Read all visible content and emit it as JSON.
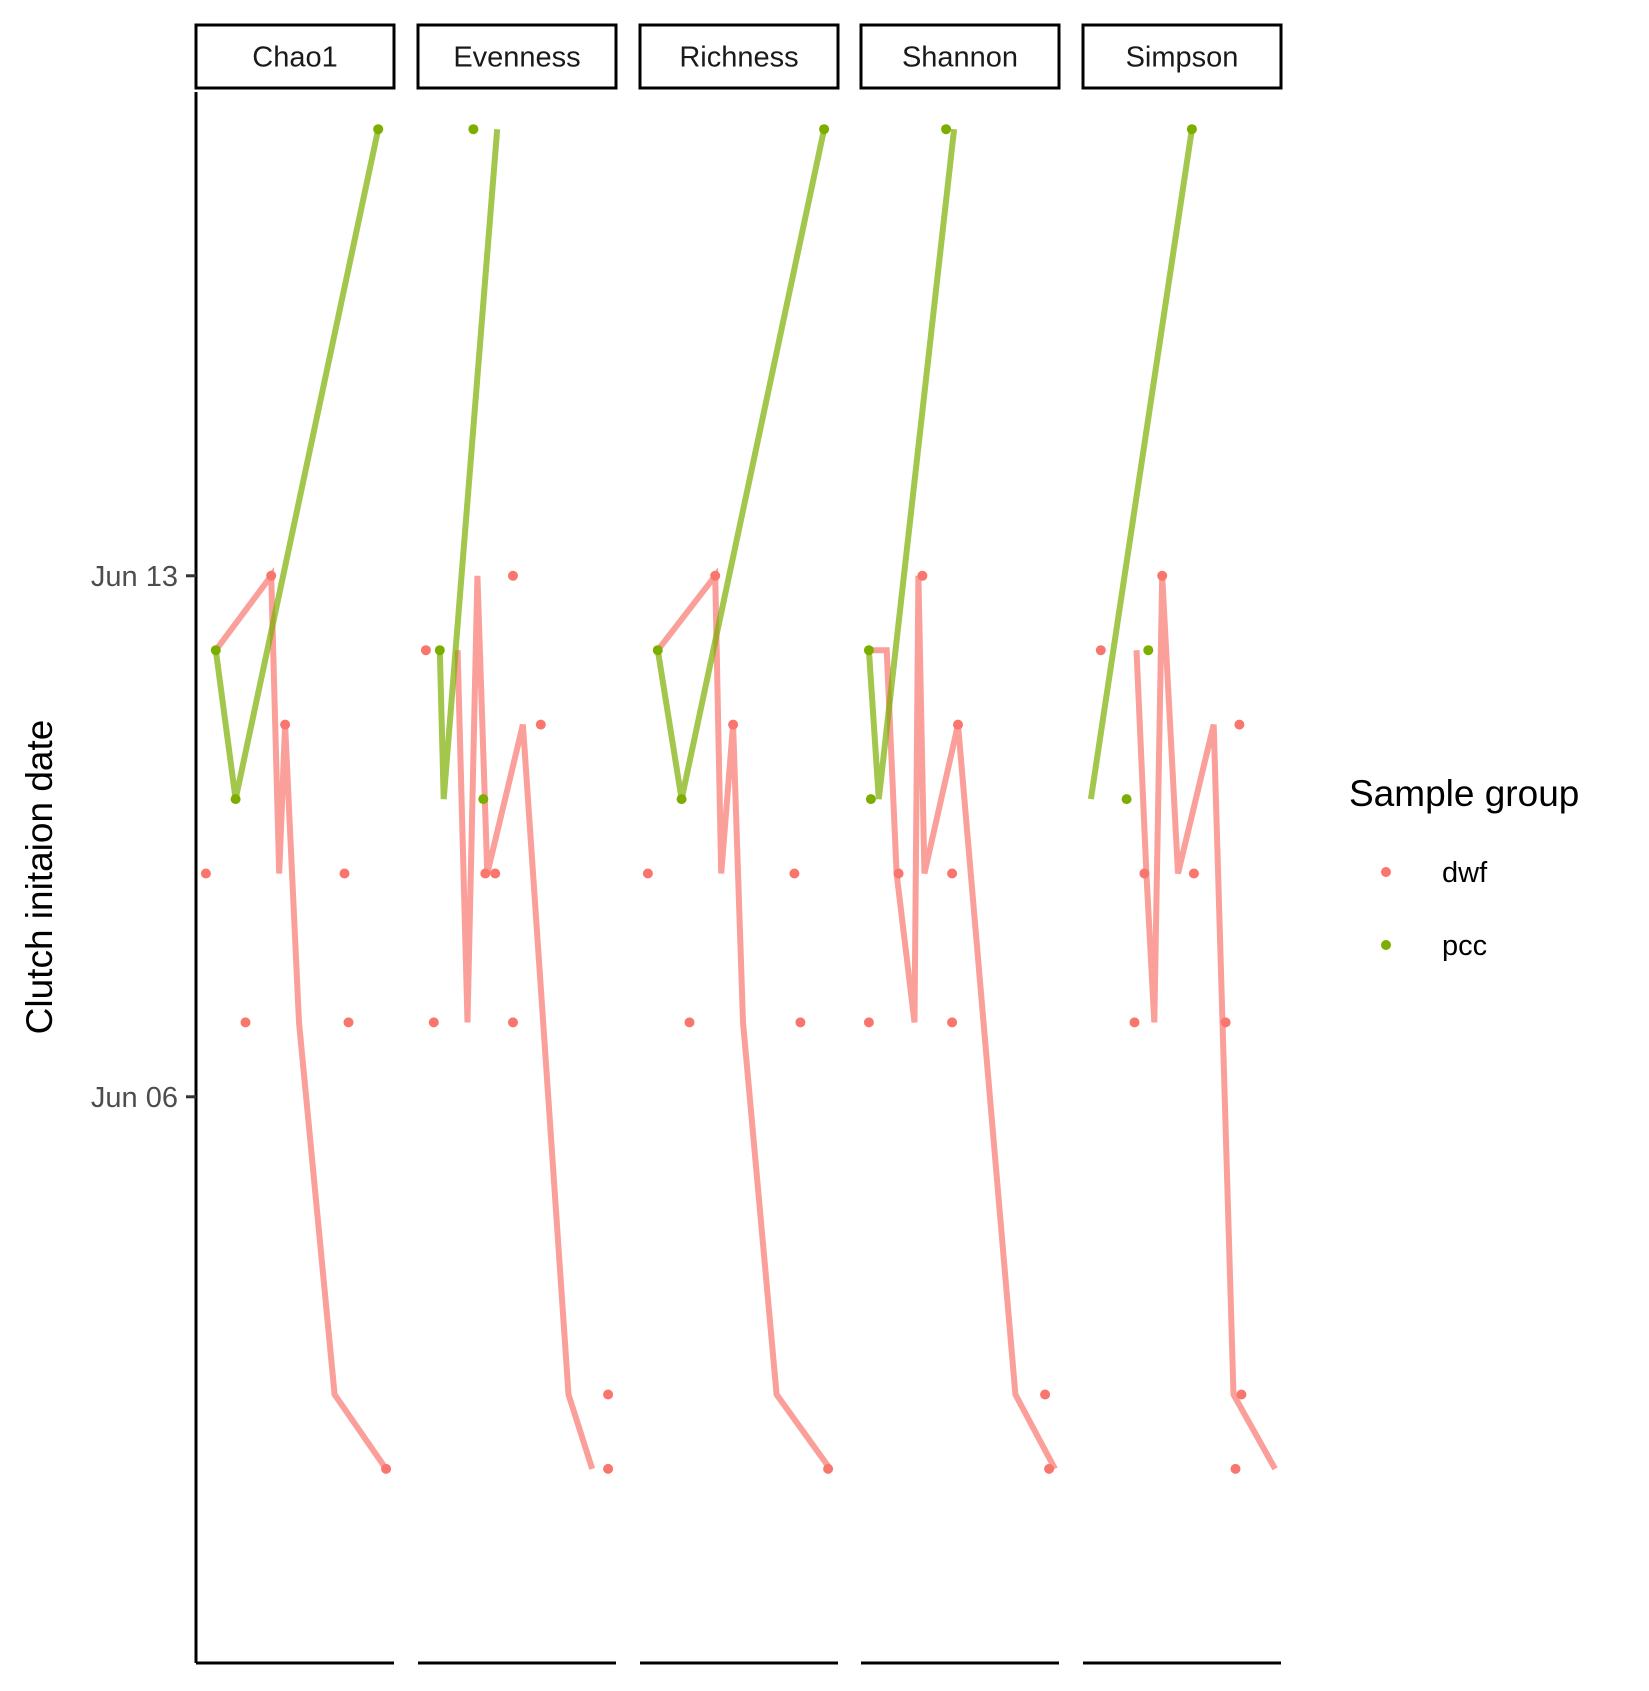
{
  "chart_data": {
    "type": "line",
    "ylabel": "Clutch initaion date",
    "xlabel": "",
    "title": "",
    "y_ticks": [
      {
        "value": "2019-06-06",
        "label": "Jun 06"
      },
      {
        "value": "2019-06-13",
        "label": "Jun 13"
      }
    ],
    "ylim": [
      "2019-05-29 12:00",
      "2019-06-19 12:00"
    ],
    "grid": false,
    "x_axis_labels": false,
    "legend": {
      "title": "Sample group",
      "position": "right",
      "entries": [
        {
          "key": "dwf",
          "label": "dwf",
          "color": "#F8766D"
        },
        {
          "key": "pcc",
          "label": "pcc",
          "color": "#7CAE00"
        }
      ]
    },
    "panels": [
      {
        "facet": "Chao1",
        "points": {
          "dwf": [
            [
              0.05,
              "2019-06-09"
            ],
            [
              0.25,
              "2019-06-07"
            ],
            [
              0.38,
              "2019-06-13"
            ],
            [
              0.45,
              "2019-06-11"
            ],
            [
              0.75,
              "2019-06-09"
            ],
            [
              0.77,
              "2019-06-07"
            ],
            [
              0.96,
              "2019-06-01"
            ]
          ],
          "pcc": [
            [
              0.1,
              "2019-06-12"
            ],
            [
              0.2,
              "2019-06-10"
            ],
            [
              0.92,
              "2019-06-19"
            ]
          ]
        },
        "lines": {
          "dwf": [
            [
              0.1,
              "2019-06-12"
            ],
            [
              0.38,
              "2019-06-13"
            ],
            [
              0.42,
              "2019-06-09"
            ],
            [
              0.45,
              "2019-06-11"
            ],
            [
              0.52,
              "2019-06-07"
            ],
            [
              0.7,
              "2019-06-02"
            ],
            [
              0.96,
              "2019-06-01"
            ]
          ],
          "pcc": [
            [
              0.1,
              "2019-06-12"
            ],
            [
              0.2,
              "2019-06-10"
            ],
            [
              0.92,
              "2019-06-19"
            ]
          ]
        }
      },
      {
        "facet": "Evenness",
        "points": {
          "dwf": [
            [
              0.04,
              "2019-06-12"
            ],
            [
              0.08,
              "2019-06-07"
            ],
            [
              0.34,
              "2019-06-09"
            ],
            [
              0.39,
              "2019-06-09"
            ],
            [
              0.48,
              "2019-06-07"
            ],
            [
              0.48,
              "2019-06-13"
            ],
            [
              0.62,
              "2019-06-11"
            ],
            [
              0.96,
              "2019-06-02"
            ],
            [
              0.96,
              "2019-06-01"
            ]
          ],
          "pcc": [
            [
              0.11,
              "2019-06-12"
            ],
            [
              0.28,
              "2019-06-19"
            ],
            [
              0.33,
              "2019-06-10"
            ]
          ]
        },
        "lines": {
          "dwf": [
            [
              0.2,
              "2019-06-12"
            ],
            [
              0.25,
              "2019-06-07"
            ],
            [
              0.3,
              "2019-06-13"
            ],
            [
              0.35,
              "2019-06-09"
            ],
            [
              0.53,
              "2019-06-11"
            ],
            [
              0.76,
              "2019-06-02"
            ],
            [
              0.88,
              "2019-06-01"
            ]
          ],
          "pcc": [
            [
              0.11,
              "2019-06-12"
            ],
            [
              0.13,
              "2019-06-10"
            ],
            [
              0.4,
              "2019-06-19"
            ]
          ]
        }
      },
      {
        "facet": "Richness",
        "points": {
          "dwf": [
            [
              0.04,
              "2019-06-09"
            ],
            [
              0.25,
              "2019-06-07"
            ],
            [
              0.38,
              "2019-06-13"
            ],
            [
              0.47,
              "2019-06-11"
            ],
            [
              0.78,
              "2019-06-09"
            ],
            [
              0.81,
              "2019-06-07"
            ],
            [
              0.95,
              "2019-06-01"
            ]
          ],
          "pcc": [
            [
              0.09,
              "2019-06-12"
            ],
            [
              0.21,
              "2019-06-10"
            ],
            [
              0.93,
              "2019-06-19"
            ]
          ]
        },
        "lines": {
          "dwf": [
            [
              0.09,
              "2019-06-12"
            ],
            [
              0.38,
              "2019-06-13"
            ],
            [
              0.41,
              "2019-06-09"
            ],
            [
              0.47,
              "2019-06-11"
            ],
            [
              0.52,
              "2019-06-07"
            ],
            [
              0.69,
              "2019-06-02"
            ],
            [
              0.96,
              "2019-06-01"
            ]
          ],
          "pcc": [
            [
              0.09,
              "2019-06-12"
            ],
            [
              0.21,
              "2019-06-10"
            ],
            [
              0.93,
              "2019-06-19"
            ]
          ]
        }
      },
      {
        "facet": "Shannon",
        "points": {
          "dwf": [
            [
              0.04,
              "2019-06-07"
            ],
            [
              0.19,
              "2019-06-09"
            ],
            [
              0.31,
              "2019-06-13"
            ],
            [
              0.46,
              "2019-06-09"
            ],
            [
              0.46,
              "2019-06-07"
            ],
            [
              0.49,
              "2019-06-11"
            ],
            [
              0.93,
              "2019-06-02"
            ],
            [
              0.95,
              "2019-06-01"
            ]
          ],
          "pcc": [
            [
              0.04,
              "2019-06-12"
            ],
            [
              0.05,
              "2019-06-10"
            ],
            [
              0.43,
              "2019-06-19"
            ]
          ]
        },
        "lines": {
          "dwf": [
            [
              0.06,
              "2019-06-12"
            ],
            [
              0.13,
              "2019-06-12"
            ],
            [
              0.18,
              "2019-06-09"
            ],
            [
              0.27,
              "2019-06-07"
            ],
            [
              0.29,
              "2019-06-13"
            ],
            [
              0.32,
              "2019-06-09"
            ],
            [
              0.49,
              "2019-06-11"
            ],
            [
              0.78,
              "2019-06-02"
            ],
            [
              0.98,
              "2019-06-01"
            ]
          ],
          "pcc": [
            [
              0.04,
              "2019-06-12"
            ],
            [
              0.09,
              "2019-06-10"
            ],
            [
              0.47,
              "2019-06-19"
            ]
          ]
        }
      },
      {
        "facet": "Simpson",
        "points": {
          "dwf": [
            [
              0.09,
              "2019-06-12"
            ],
            [
              0.26,
              "2019-06-07"
            ],
            [
              0.31,
              "2019-06-09"
            ],
            [
              0.4,
              "2019-06-13"
            ],
            [
              0.56,
              "2019-06-09"
            ],
            [
              0.72,
              "2019-06-07"
            ],
            [
              0.8,
              "2019-06-02"
            ],
            [
              0.79,
              "2019-06-11"
            ],
            [
              0.77,
              "2019-06-01"
            ]
          ],
          "pcc": [
            [
              0.22,
              "2019-06-10"
            ],
            [
              0.33,
              "2019-06-12"
            ],
            [
              0.55,
              "2019-06-19"
            ]
          ]
        },
        "lines": {
          "dwf": [
            [
              0.27,
              "2019-06-12"
            ],
            [
              0.32,
              "2019-06-09"
            ],
            [
              0.36,
              "2019-06-07"
            ],
            [
              0.4,
              "2019-06-13"
            ],
            [
              0.48,
              "2019-06-09"
            ],
            [
              0.66,
              "2019-06-11"
            ],
            [
              0.76,
              "2019-06-02"
            ],
            [
              0.97,
              "2019-06-01"
            ]
          ],
          "pcc": [
            [
              0.04,
              "2019-06-10"
            ],
            [
              0.55,
              "2019-06-19"
            ]
          ]
        }
      }
    ]
  }
}
